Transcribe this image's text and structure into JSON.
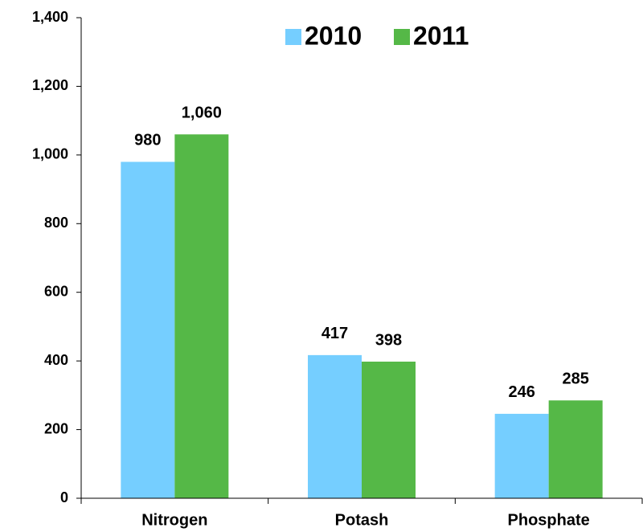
{
  "chart_data": {
    "type": "bar",
    "categories": [
      "Nitrogen",
      "Potash",
      "Phosphate"
    ],
    "series": [
      {
        "name": "2010",
        "color": "#75ceff",
        "values": [
          980,
          417,
          246
        ]
      },
      {
        "name": "2011",
        "color": "#55b847",
        "values": [
          1060,
          398,
          285
        ],
        "value_labels": [
          "1,060",
          "398",
          "285"
        ]
      }
    ],
    "ylim": [
      0,
      1400
    ],
    "yticks": [
      0,
      200,
      400,
      600,
      800,
      {
        "value": 1000,
        "label": "1,000"
      },
      {
        "value": 1200,
        "label": "1,200"
      },
      {
        "value": 1400,
        "label": "1,400"
      }
    ],
    "grid": false,
    "legend": "top"
  }
}
